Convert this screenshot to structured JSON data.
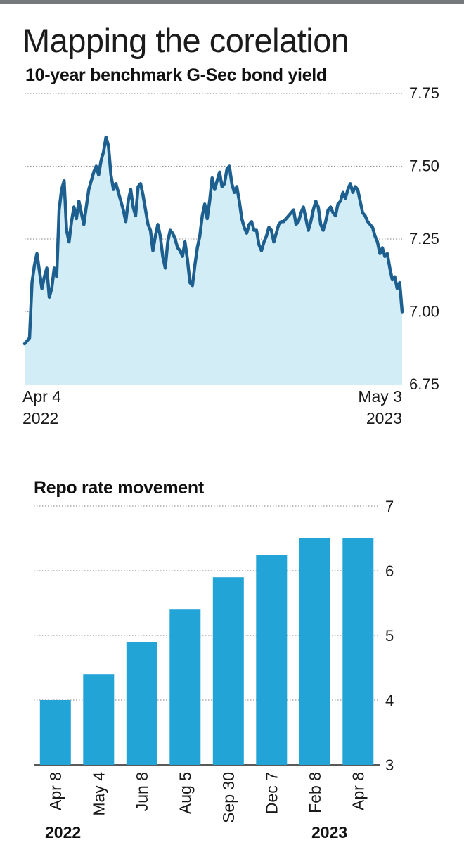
{
  "headline": "Mapping the corelation",
  "colors": {
    "line": "#1d5f8f",
    "area": "#d3edf7",
    "bar": "#23a4d6",
    "grid": "#9a9a9a"
  },
  "chart_data": [
    {
      "type": "area",
      "title": "10-year benchmark G-Sec bond yield",
      "xlabel": "",
      "ylabel": "",
      "ylim": [
        6.75,
        7.75
      ],
      "yticks": [
        "7.75",
        "7.50",
        "7.25",
        "7.00",
        "6.75"
      ],
      "x_start_label": "Apr 4",
      "x_start_year": "2022",
      "x_end_label": "May 3",
      "x_end_year": "2023",
      "grid": true,
      "values": [
        6.89,
        6.9,
        6.91,
        7.1,
        7.16,
        7.2,
        7.14,
        7.08,
        7.12,
        7.15,
        7.05,
        7.08,
        7.15,
        7.12,
        7.35,
        7.42,
        7.45,
        7.28,
        7.24,
        7.31,
        7.36,
        7.32,
        7.38,
        7.34,
        7.3,
        7.36,
        7.42,
        7.45,
        7.48,
        7.5,
        7.47,
        7.52,
        7.55,
        7.6,
        7.57,
        7.47,
        7.42,
        7.44,
        7.41,
        7.38,
        7.35,
        7.31,
        7.38,
        7.42,
        7.36,
        7.33,
        7.43,
        7.44,
        7.4,
        7.35,
        7.3,
        7.28,
        7.21,
        7.26,
        7.3,
        7.26,
        7.19,
        7.15,
        7.24,
        7.28,
        7.27,
        7.25,
        7.22,
        7.21,
        7.19,
        7.24,
        7.18,
        7.1,
        7.09,
        7.16,
        7.22,
        7.26,
        7.33,
        7.37,
        7.32,
        7.38,
        7.46,
        7.42,
        7.45,
        7.48,
        7.43,
        7.44,
        7.49,
        7.5,
        7.44,
        7.41,
        7.43,
        7.38,
        7.32,
        7.29,
        7.27,
        7.3,
        7.31,
        7.28,
        7.28,
        7.23,
        7.21,
        7.24,
        7.26,
        7.29,
        7.28,
        7.24,
        7.27,
        7.3,
        7.31,
        7.31,
        7.32,
        7.33,
        7.34,
        7.35,
        7.3,
        7.31,
        7.34,
        7.36,
        7.32,
        7.28,
        7.31,
        7.35,
        7.38,
        7.36,
        7.3,
        7.28,
        7.31,
        7.35,
        7.36,
        7.34,
        7.33,
        7.37,
        7.38,
        7.41,
        7.39,
        7.42,
        7.44,
        7.41,
        7.43,
        7.42,
        7.38,
        7.34,
        7.33,
        7.31,
        7.3,
        7.29,
        7.26,
        7.24,
        7.2,
        7.22,
        7.19,
        7.2,
        7.15,
        7.11,
        7.12,
        7.08,
        7.1,
        7.0
      ]
    },
    {
      "type": "bar",
      "title": "Repo rate movement",
      "xlabel": "",
      "ylabel": "",
      "ylim": [
        3,
        7
      ],
      "yticks": [
        "7",
        "6",
        "5",
        "4",
        "3"
      ],
      "categories": [
        "Apr 8",
        "May 4",
        "Jun 8",
        "Aug 5",
        "Sep 30",
        "Dec 7",
        "Feb 8",
        "Apr 8"
      ],
      "values": [
        4.0,
        4.4,
        4.9,
        5.4,
        5.9,
        6.25,
        6.5,
        6.5
      ],
      "year_labels": [
        "2022",
        "2023"
      ],
      "grid": true
    }
  ]
}
